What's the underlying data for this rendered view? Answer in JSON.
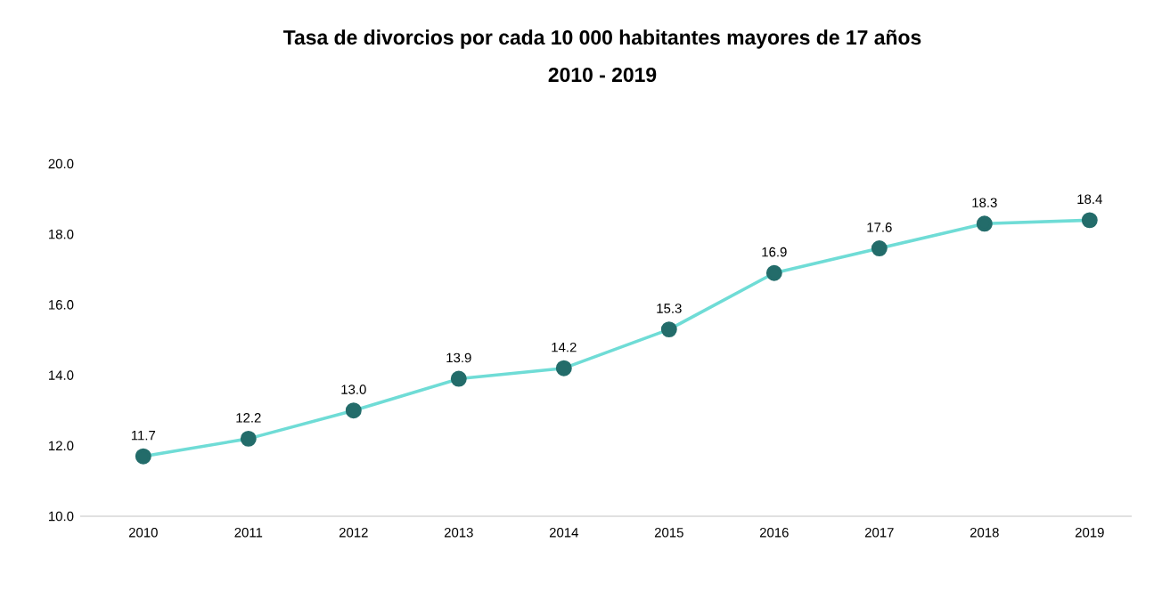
{
  "chart_data": {
    "type": "line",
    "title": "Tasa de divorcios por cada 10 000 habitantes mayores de 17 años",
    "subtitle": "2010 - 2019",
    "categories": [
      "2010",
      "2011",
      "2012",
      "2013",
      "2014",
      "2015",
      "2016",
      "2017",
      "2018",
      "2019"
    ],
    "series": [
      {
        "color": "#6fdcd6",
        "values": [
          11.7,
          12.2,
          13.0,
          13.9,
          14.2,
          15.3,
          16.9,
          17.6,
          18.3,
          18.4
        ],
        "value_labels": [
          "11.7",
          "12.2",
          "13.0",
          "13.9",
          "14.2",
          "15.3",
          "16.9",
          "17.6",
          "18.3",
          "18.4"
        ]
      }
    ],
    "ylim": [
      10,
      20
    ],
    "yticks": [
      {
        "value": 10,
        "label": "10.0"
      },
      {
        "value": 12,
        "label": "12.0"
      },
      {
        "value": 14,
        "label": "14.0"
      },
      {
        "value": 16,
        "label": "16.0"
      },
      {
        "value": 18,
        "label": "18.0"
      },
      {
        "value": 20,
        "label": "20.0"
      }
    ],
    "marker": "circle",
    "line_style": "solid",
    "grid": false
  }
}
